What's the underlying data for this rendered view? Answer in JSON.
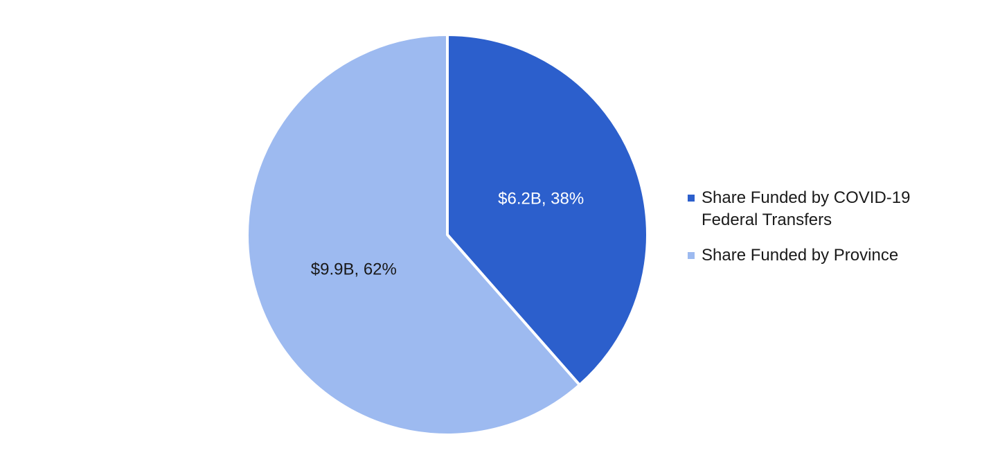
{
  "chart_data": {
    "type": "pie",
    "series": [
      {
        "name": "Share Funded by COVID-19 Federal Transfers",
        "value": 6.2,
        "percent": 38,
        "label": "$6.2B, 38%",
        "color": "#2c5fcc",
        "label_color": "#ffffff"
      },
      {
        "name": "Share Funded by Province",
        "value": 9.9,
        "percent": 62,
        "label": "$9.9B, 62%",
        "color": "#9dbaf0",
        "label_color": "#1a1a1a"
      }
    ],
    "legend_position": "right"
  }
}
